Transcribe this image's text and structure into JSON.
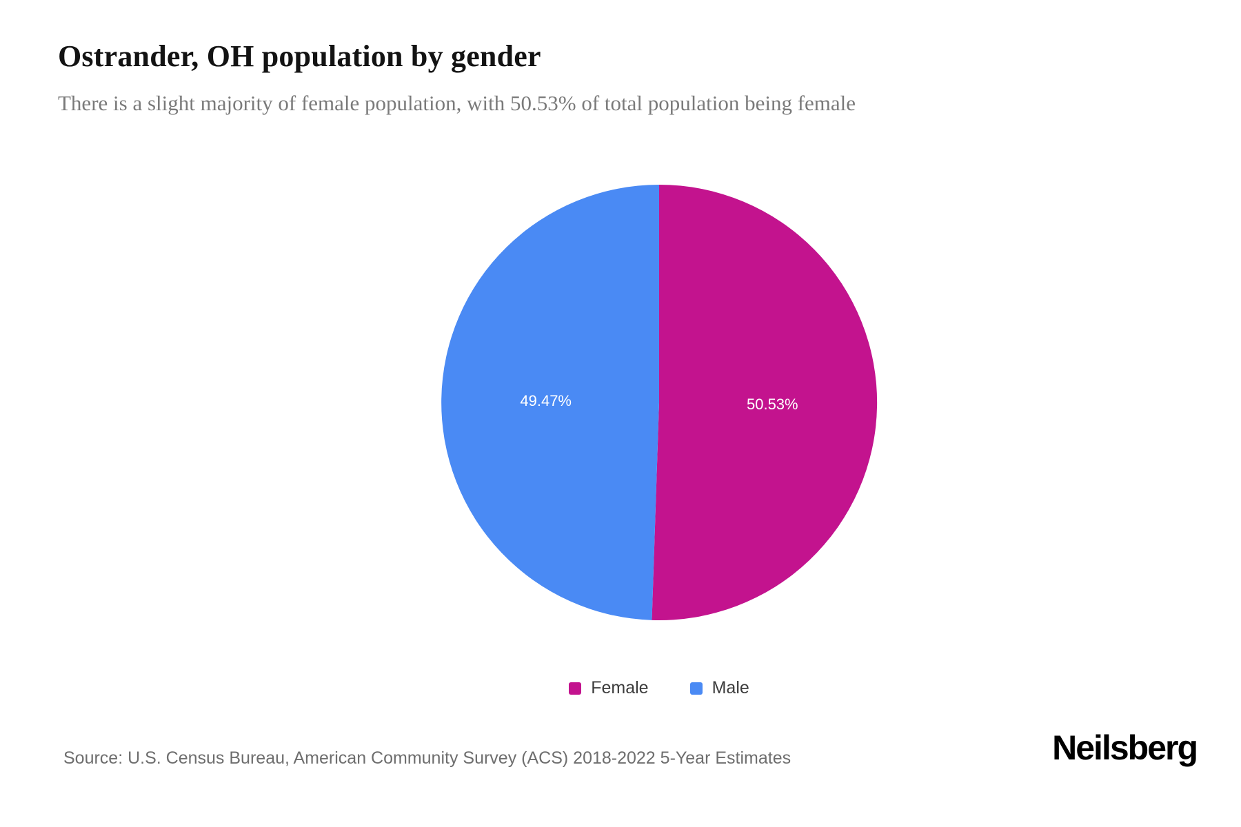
{
  "title": "Ostrander, OH population by gender",
  "subtitle": "There is a slight majority of female population, with 50.53% of total population being female",
  "source": "Source: U.S. Census Bureau, American Community Survey (ACS) 2018-2022 5-Year Estimates",
  "brand": "Neilsberg",
  "chart_data": {
    "type": "pie",
    "title": "Ostrander, OH population by gender",
    "series": [
      {
        "name": "Female",
        "value": 50.53,
        "label": "50.53%",
        "color": "#c3138e"
      },
      {
        "name": "Male",
        "value": 49.47,
        "label": "49.47%",
        "color": "#4a8af4"
      }
    ],
    "start_angle_deg": 0,
    "direction": "clockwise",
    "legend_position": "bottom",
    "slice_label_color": "#ffffff",
    "label_radius_ratio": 0.52
  }
}
